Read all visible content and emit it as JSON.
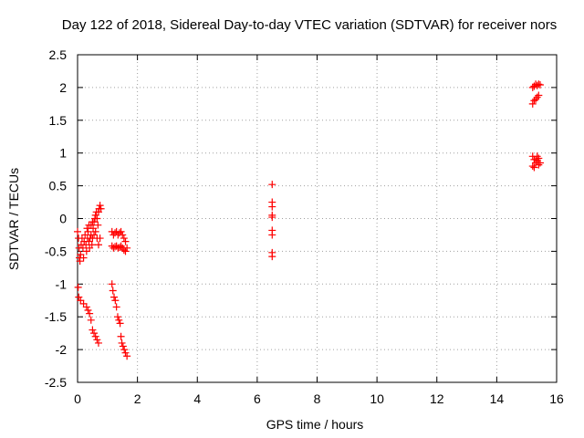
{
  "chart_data": {
    "type": "scatter",
    "title": "Day 122 of 2018, Sidereal Day-to-day VTEC variation (SDTVAR) for receiver nors",
    "xlabel": "GPS time / hours",
    "ylabel": "SDTVAR / TECUs",
    "xlim": [
      0,
      16
    ],
    "ylim": [
      -2.5,
      2.5
    ],
    "xticks": [
      "0",
      "2",
      "4",
      "6",
      "8",
      "10",
      "12",
      "14",
      "16"
    ],
    "yticks": [
      "2.5",
      "2",
      "1.5",
      "1",
      "0.5",
      "0",
      "-0.5",
      "-1",
      "-1.5",
      "-2",
      "-2.5"
    ],
    "grid": true,
    "marker": "+",
    "color": "#ff0000",
    "series": [
      {
        "name": "SDTVAR",
        "points": [
          [
            0.0,
            -0.2
          ],
          [
            0.03,
            -0.3
          ],
          [
            0.05,
            -0.45
          ],
          [
            0.06,
            -0.6
          ],
          [
            0.08,
            -0.65
          ],
          [
            0.1,
            -0.55
          ],
          [
            0.12,
            -0.4
          ],
          [
            0.15,
            -0.3
          ],
          [
            0.18,
            -0.45
          ],
          [
            0.2,
            -0.6
          ],
          [
            0.22,
            -0.35
          ],
          [
            0.25,
            -0.25
          ],
          [
            0.28,
            -0.4
          ],
          [
            0.3,
            -0.5
          ],
          [
            0.33,
            -0.3
          ],
          [
            0.35,
            -0.2
          ],
          [
            0.38,
            -0.35
          ],
          [
            0.4,
            -0.45
          ],
          [
            0.42,
            -0.3
          ],
          [
            0.45,
            -0.25
          ],
          [
            0.48,
            -0.4
          ],
          [
            0.5,
            -0.3
          ],
          [
            0.52,
            -0.15
          ],
          [
            0.55,
            -0.05
          ],
          [
            0.58,
            0.0
          ],
          [
            0.6,
            0.05
          ],
          [
            0.63,
            0.1
          ],
          [
            0.65,
            0.0
          ],
          [
            0.68,
            -0.1
          ],
          [
            0.7,
            0.1
          ],
          [
            0.72,
            0.15
          ],
          [
            0.75,
            0.2
          ],
          [
            0.78,
            0.15
          ],
          [
            0.55,
            -0.25
          ],
          [
            0.6,
            -0.2
          ],
          [
            0.65,
            -0.3
          ],
          [
            0.7,
            -0.4
          ],
          [
            0.75,
            -0.3
          ],
          [
            0.45,
            -0.1
          ],
          [
            0.5,
            -0.05
          ],
          [
            0.38,
            -0.1
          ],
          [
            0.32,
            -0.15
          ],
          [
            0.02,
            -1.05
          ],
          [
            0.04,
            -1.2
          ],
          [
            0.1,
            -1.25
          ],
          [
            0.2,
            -1.3
          ],
          [
            0.3,
            -1.35
          ],
          [
            0.35,
            -1.4
          ],
          [
            0.4,
            -1.45
          ],
          [
            0.45,
            -1.55
          ],
          [
            0.5,
            -1.7
          ],
          [
            0.55,
            -1.75
          ],
          [
            0.6,
            -1.8
          ],
          [
            0.65,
            -1.85
          ],
          [
            0.7,
            -1.9
          ],
          [
            1.15,
            -0.2
          ],
          [
            1.2,
            -0.25
          ],
          [
            1.25,
            -0.22
          ],
          [
            1.3,
            -0.2
          ],
          [
            1.35,
            -0.25
          ],
          [
            1.4,
            -0.22
          ],
          [
            1.45,
            -0.2
          ],
          [
            1.5,
            -0.25
          ],
          [
            1.55,
            -0.3
          ],
          [
            1.6,
            -0.35
          ],
          [
            1.15,
            -0.42
          ],
          [
            1.2,
            -0.45
          ],
          [
            1.25,
            -0.43
          ],
          [
            1.3,
            -0.42
          ],
          [
            1.35,
            -0.45
          ],
          [
            1.4,
            -0.44
          ],
          [
            1.45,
            -0.42
          ],
          [
            1.5,
            -0.45
          ],
          [
            1.55,
            -0.48
          ],
          [
            1.6,
            -0.5
          ],
          [
            1.65,
            -0.45
          ],
          [
            1.15,
            -1.0
          ],
          [
            1.18,
            -1.1
          ],
          [
            1.22,
            -1.2
          ],
          [
            1.26,
            -1.25
          ],
          [
            1.3,
            -1.35
          ],
          [
            1.34,
            -1.5
          ],
          [
            1.38,
            -1.55
          ],
          [
            1.42,
            -1.6
          ],
          [
            1.45,
            -1.8
          ],
          [
            1.48,
            -1.9
          ],
          [
            1.52,
            -1.95
          ],
          [
            1.56,
            -2.0
          ],
          [
            1.6,
            -2.05
          ],
          [
            1.65,
            -2.1
          ],
          [
            6.5,
            0.52
          ],
          [
            6.5,
            0.25
          ],
          [
            6.5,
            0.18
          ],
          [
            6.5,
            0.05
          ],
          [
            6.5,
            0.02
          ],
          [
            6.5,
            -0.18
          ],
          [
            6.5,
            -0.25
          ],
          [
            6.5,
            -0.52
          ],
          [
            6.5,
            -0.58
          ],
          [
            15.2,
            1.75
          ],
          [
            15.25,
            1.8
          ],
          [
            15.3,
            1.82
          ],
          [
            15.35,
            1.85
          ],
          [
            15.4,
            1.88
          ],
          [
            15.2,
            2.0
          ],
          [
            15.25,
            2.02
          ],
          [
            15.3,
            2.05
          ],
          [
            15.35,
            2.03
          ],
          [
            15.4,
            2.05
          ],
          [
            15.45,
            2.04
          ],
          [
            15.2,
            0.95
          ],
          [
            15.25,
            0.9
          ],
          [
            15.3,
            0.85
          ],
          [
            15.35,
            0.88
          ],
          [
            15.4,
            0.92
          ],
          [
            15.45,
            0.85
          ],
          [
            15.2,
            0.8
          ],
          [
            15.25,
            0.78
          ],
          [
            15.3,
            0.9
          ],
          [
            15.35,
            0.95
          ],
          [
            15.4,
            0.82
          ]
        ]
      }
    ]
  }
}
